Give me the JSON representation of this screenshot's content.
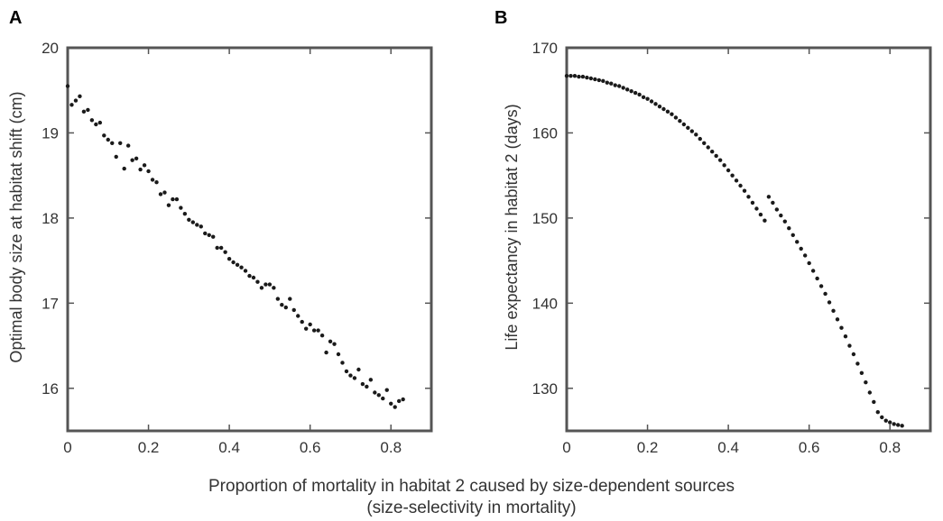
{
  "figure": {
    "xlabel_line1": "Proportion of mortality in habitat 2 caused by size-dependent sources",
    "xlabel_line2": "(size-selectivity in mortality)"
  },
  "colors": {
    "frame": "#555555",
    "points": "#1a1a1a",
    "text": "#333333"
  },
  "chart_data": [
    {
      "type": "scatter",
      "panel": "A",
      "ylabel": "Optimal body size at habitat shift (cm)",
      "xlim": [
        0,
        0.9
      ],
      "ylim": [
        15.5,
        20
      ],
      "xticks": [
        0,
        0.2,
        0.4,
        0.6,
        0.8
      ],
      "xtick_labels": [
        "0",
        "0.2",
        "0.4",
        "0.6",
        "0.8"
      ],
      "yticks": [
        16,
        17,
        18,
        19,
        20
      ],
      "ytick_labels": [
        "16",
        "17",
        "18",
        "19",
        "20"
      ],
      "grid": false,
      "series": [
        {
          "x": [
            0.0,
            0.01,
            0.02,
            0.03,
            0.04,
            0.05,
            0.06,
            0.07,
            0.08,
            0.09,
            0.1,
            0.11,
            0.12,
            0.13,
            0.14,
            0.15,
            0.16,
            0.17,
            0.18,
            0.19,
            0.2,
            0.21,
            0.22,
            0.23,
            0.24,
            0.25,
            0.26,
            0.27,
            0.28,
            0.29,
            0.3,
            0.31,
            0.32,
            0.33,
            0.34,
            0.35,
            0.36,
            0.37,
            0.38,
            0.39,
            0.4,
            0.41,
            0.42,
            0.43,
            0.44,
            0.45,
            0.46,
            0.47,
            0.48,
            0.49,
            0.5,
            0.51,
            0.52,
            0.53,
            0.54,
            0.55,
            0.56,
            0.57,
            0.58,
            0.59,
            0.6,
            0.61,
            0.62,
            0.63,
            0.64,
            0.65,
            0.66,
            0.67,
            0.68,
            0.69,
            0.7,
            0.71,
            0.72,
            0.73,
            0.74,
            0.75,
            0.76,
            0.77,
            0.78,
            0.79,
            0.8,
            0.81,
            0.82,
            0.83
          ],
          "y": [
            19.55,
            19.33,
            19.38,
            19.43,
            19.25,
            19.27,
            19.15,
            19.1,
            19.12,
            18.97,
            18.92,
            18.88,
            18.72,
            18.88,
            18.58,
            18.85,
            18.68,
            18.7,
            18.57,
            18.62,
            18.55,
            18.45,
            18.42,
            18.28,
            18.3,
            18.15,
            18.22,
            18.22,
            18.12,
            18.05,
            17.98,
            17.95,
            17.92,
            17.9,
            17.82,
            17.8,
            17.78,
            17.65,
            17.65,
            17.6,
            17.52,
            17.48,
            17.45,
            17.42,
            17.38,
            17.32,
            17.3,
            17.25,
            17.18,
            17.22,
            17.22,
            17.18,
            17.05,
            16.98,
            16.95,
            17.05,
            16.92,
            16.85,
            16.78,
            16.7,
            16.75,
            16.68,
            16.68,
            16.62,
            16.42,
            16.55,
            16.52,
            16.4,
            16.3,
            16.2,
            16.15,
            16.12,
            16.22,
            16.05,
            16.02,
            16.1,
            15.95,
            15.92,
            15.88,
            15.98,
            15.82,
            15.78,
            15.85,
            15.87
          ]
        }
      ]
    },
    {
      "type": "scatter",
      "panel": "B",
      "ylabel": "Life expectancy in habitat 2 (days)",
      "xlim": [
        0,
        0.9
      ],
      "ylim": [
        125,
        170
      ],
      "xticks": [
        0,
        0.2,
        0.4,
        0.6,
        0.8
      ],
      "xtick_labels": [
        "0",
        "0.2",
        "0.4",
        "0.6",
        "0.8"
      ],
      "yticks": [
        130,
        140,
        150,
        160,
        170
      ],
      "ytick_labels": [
        "130",
        "140",
        "150",
        "160",
        "170"
      ],
      "grid": false,
      "series": [
        {
          "x": [
            0.0,
            0.01,
            0.02,
            0.03,
            0.04,
            0.05,
            0.06,
            0.07,
            0.08,
            0.09,
            0.1,
            0.11,
            0.12,
            0.13,
            0.14,
            0.15,
            0.16,
            0.17,
            0.18,
            0.19,
            0.2,
            0.21,
            0.22,
            0.23,
            0.24,
            0.25,
            0.26,
            0.27,
            0.28,
            0.29,
            0.3,
            0.31,
            0.32,
            0.33,
            0.34,
            0.35,
            0.36,
            0.37,
            0.38,
            0.39,
            0.4,
            0.41,
            0.42,
            0.43,
            0.44,
            0.45,
            0.46,
            0.47,
            0.48,
            0.49,
            0.5,
            0.51,
            0.52,
            0.53,
            0.54,
            0.55,
            0.56,
            0.57,
            0.58,
            0.59,
            0.6,
            0.61,
            0.62,
            0.63,
            0.64,
            0.65,
            0.66,
            0.67,
            0.68,
            0.69,
            0.7,
            0.71,
            0.72,
            0.73,
            0.74,
            0.75,
            0.76,
            0.77,
            0.78,
            0.79,
            0.8,
            0.81,
            0.82,
            0.83
          ],
          "y": [
            166.7,
            166.7,
            166.7,
            166.6,
            166.6,
            166.5,
            166.4,
            166.3,
            166.2,
            166.1,
            165.9,
            165.8,
            165.6,
            165.5,
            165.3,
            165.1,
            164.9,
            164.7,
            164.5,
            164.2,
            164.0,
            163.7,
            163.4,
            163.1,
            162.8,
            162.5,
            162.2,
            161.8,
            161.4,
            161.0,
            160.6,
            160.2,
            159.8,
            159.3,
            158.8,
            158.3,
            157.8,
            157.3,
            156.8,
            156.2,
            155.6,
            155.0,
            154.4,
            153.8,
            153.2,
            152.5,
            151.8,
            151.1,
            150.4,
            149.7,
            152.5,
            151.8,
            151.0,
            150.3,
            149.6,
            148.8,
            148.0,
            147.2,
            146.4,
            145.6,
            144.7,
            143.8,
            142.9,
            142.0,
            141.1,
            140.1,
            139.1,
            138.1,
            137.1,
            136.1,
            135.0,
            134.0,
            132.9,
            131.8,
            130.7,
            129.5,
            128.4,
            127.2,
            126.6,
            126.2,
            126.0,
            125.8,
            125.7,
            125.6
          ]
        }
      ]
    }
  ]
}
